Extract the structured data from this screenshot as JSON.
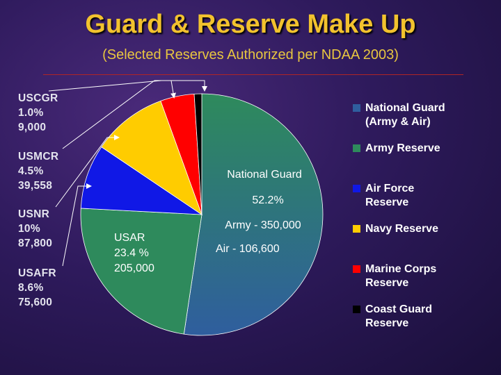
{
  "header": {
    "title": "Guard & Reserve Make Up",
    "subtitle": "(Selected Reserves Authorized per NDAA 2003)"
  },
  "chart_data": {
    "type": "pie",
    "title": "Guard & Reserve Make Up",
    "subtitle": "(Selected Reserves Authorized per NDAA 2003)",
    "slices": [
      {
        "key": "ng",
        "name": "National Guard",
        "legend": [
          "National Guard",
          "(Army & Air)"
        ],
        "value": 52.2,
        "color": "#2f5e9e"
      },
      {
        "key": "usar",
        "name": "Army Reserve",
        "legend": [
          "Army Reserve"
        ],
        "value": 23.4,
        "color": "#2e8a5c"
      },
      {
        "key": "usafr",
        "name": "Air Force Reserve",
        "legend": [
          "Air Force",
          "Reserve"
        ],
        "value": 8.6,
        "color": "#1018e6"
      },
      {
        "key": "usnr",
        "name": "Navy Reserve",
        "legend": [
          "Navy Reserve"
        ],
        "value": 10.0,
        "color": "#ffcc00"
      },
      {
        "key": "usmcr",
        "name": "Marine Corps Reserve",
        "legend": [
          "Marine Corps",
          "Reserve"
        ],
        "value": 4.5,
        "color": "#ff0000"
      },
      {
        "key": "uscgr",
        "name": "Coast Guard Reserve",
        "legend": [
          "Coast Guard",
          "Reserve"
        ],
        "value": 1.0,
        "color": "#000000"
      }
    ],
    "inside_labels": {
      "ng": [
        "National Guard",
        "52.2%",
        "Army - 350,000",
        "Air - 106,600"
      ],
      "usar": [
        "USAR",
        "23.4 %",
        "205,000"
      ]
    },
    "side_labels": {
      "uscgr": [
        "USCGR",
        "1.0%",
        "9,000"
      ],
      "usmcr": [
        "USMCR",
        "4.5%",
        "39,558"
      ],
      "usnr": [
        "USNR",
        "10%",
        "87,800"
      ],
      "usafr": [
        "USAFR",
        "8.6%",
        "75,600"
      ]
    },
    "legend_position": "right"
  }
}
